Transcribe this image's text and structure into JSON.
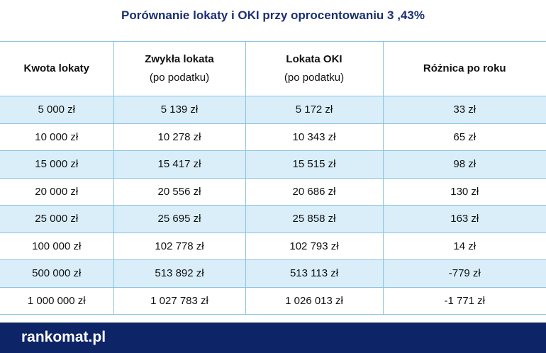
{
  "title": "Porównanie lokaty i OKI przy oprocentowaniu 3 ,43%",
  "table": {
    "header": [
      [
        "Kwota lokaty"
      ],
      [
        "Zwykła lokata",
        "(po podatku)"
      ],
      [
        "Lokata OKI",
        "(po podatku)"
      ],
      [
        "Różnica po roku"
      ]
    ],
    "rows": [
      [
        "5 000 zł",
        "5 139 zł",
        "5 172 zł",
        "33 zł"
      ],
      [
        "10 000 zł",
        "10 278 zł",
        "10 343 zł",
        "65 zł"
      ],
      [
        "15 000 zł",
        "15 417 zł",
        "15 515 zł",
        "98 zł"
      ],
      [
        "20 000 zł",
        "20 556 zł",
        "20 686 zł",
        "130 zł"
      ],
      [
        "25 000 zł",
        "25 695 zł",
        "25 858 zł",
        "163 zł"
      ],
      [
        "100 000 zł",
        "102 778 zł",
        "102 793 zł",
        "14 zł"
      ],
      [
        "500 000 zł",
        "513 892 zł",
        "513 113 zł",
        "-779 zł"
      ],
      [
        "1 000 000 zł",
        "1 027 783 zł",
        "1 026 013 zł",
        "-1 771 zł"
      ]
    ]
  },
  "footer": {
    "logo": "rankomat.pl"
  }
}
